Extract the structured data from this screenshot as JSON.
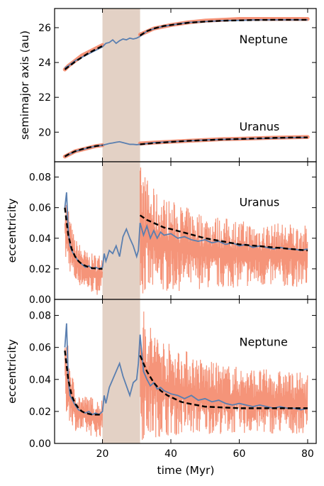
{
  "chart_data": {
    "type": "line",
    "layout": "3 vertically stacked panels sharing the x axis",
    "xlabel": "time (Myr)",
    "xlim": [
      6,
      82.5
    ],
    "xticks": [
      20,
      40,
      60,
      80
    ],
    "xtick_labels": [
      "20",
      "40",
      "60",
      "80"
    ],
    "shaded_band": {
      "x": [
        20,
        31
      ],
      "color": "#e2cfc2"
    },
    "colors": {
      "noisy": "#f4886a",
      "smooth": "#5a7fb0",
      "fit": "#000000"
    },
    "panels": [
      {
        "ylabel": "semimajor axis (au)",
        "ylim": [
          18.3,
          27.1
        ],
        "yticks": [
          20,
          22,
          24,
          26
        ],
        "ytick_labels": [
          "20",
          "22",
          "24",
          "26"
        ],
        "labels": [
          {
            "text": "Neptune",
            "x": 60,
            "y": 25.1
          },
          {
            "text": "Uranus",
            "x": 60,
            "y": 20.1
          }
        ],
        "series": [
          {
            "kind": "noisy",
            "x": [
              9,
              10,
              12,
              14,
              16,
              18,
              20
            ],
            "y": [
              23.6,
              23.8,
              24.1,
              24.4,
              24.6,
              24.8,
              25.0
            ]
          },
          {
            "kind": "noisy",
            "x": [
              31,
              35,
              40,
              45,
              50,
              55,
              60,
              65,
              70,
              75,
              80
            ],
            "y": [
              25.6,
              25.95,
              26.15,
              26.3,
              26.4,
              26.45,
              26.5,
              26.5,
              26.5,
              26.5,
              26.5
            ]
          },
          {
            "kind": "noisy",
            "x": [
              9,
              10,
              12,
              14,
              16,
              18,
              20
            ],
            "y": [
              18.6,
              18.7,
              18.9,
              19.0,
              19.1,
              19.2,
              19.25
            ]
          },
          {
            "kind": "noisy",
            "x": [
              31,
              35,
              40,
              45,
              50,
              55,
              60,
              65,
              70,
              75,
              80
            ],
            "y": [
              19.35,
              19.4,
              19.45,
              19.5,
              19.55,
              19.6,
              19.62,
              19.65,
              19.68,
              19.7,
              19.72
            ]
          },
          {
            "kind": "smooth",
            "x": [
              9,
              10,
              12,
              14,
              16,
              18,
              20,
              21,
              22,
              23,
              24,
              25,
              26,
              27,
              28,
              29,
              30,
              31,
              33,
              36,
              40,
              45,
              50,
              55,
              60,
              65,
              70,
              75,
              80
            ],
            "y": [
              23.7,
              23.8,
              24.1,
              24.3,
              24.5,
              24.7,
              24.9,
              25.1,
              25.15,
              25.3,
              25.1,
              25.25,
              25.35,
              25.3,
              25.4,
              25.35,
              25.4,
              25.5,
              25.8,
              26.0,
              26.15,
              26.3,
              26.35,
              26.4,
              26.42,
              26.45,
              26.45,
              26.45,
              26.45
            ]
          },
          {
            "kind": "smooth",
            "x": [
              9,
              10,
              12,
              14,
              16,
              18,
              20,
              21,
              22,
              23,
              24,
              25,
              26,
              27,
              28,
              29,
              30,
              31,
              35,
              40,
              45,
              50,
              55,
              60,
              65,
              70,
              75,
              80
            ],
            "y": [
              18.6,
              18.7,
              18.9,
              19.0,
              19.1,
              19.2,
              19.25,
              19.3,
              19.35,
              19.38,
              19.42,
              19.45,
              19.4,
              19.35,
              19.3,
              19.3,
              19.28,
              19.3,
              19.4,
              19.45,
              19.5,
              19.55,
              19.58,
              19.6,
              19.63,
              19.65,
              19.68,
              19.7
            ]
          },
          {
            "kind": "fit",
            "x": [
              9,
              10,
              12,
              14,
              16,
              18,
              20
            ],
            "y": [
              23.6,
              23.75,
              24.05,
              24.3,
              24.55,
              24.75,
              24.95
            ]
          },
          {
            "kind": "fit",
            "x": [
              31,
              33,
              35,
              38,
              40,
              45,
              50,
              55,
              60,
              65,
              70,
              75,
              80
            ],
            "y": [
              25.55,
              25.8,
              25.95,
              26.1,
              26.15,
              26.28,
              26.35,
              26.4,
              26.42,
              26.44,
              26.45,
              26.45,
              26.45
            ]
          },
          {
            "kind": "fit",
            "x": [
              9,
              10,
              12,
              14,
              16,
              18,
              20
            ],
            "y": [
              18.6,
              18.72,
              18.9,
              19.02,
              19.12,
              19.2,
              19.25
            ]
          },
          {
            "kind": "fit",
            "x": [
              31,
              35,
              40,
              45,
              50,
              55,
              60,
              65,
              70,
              75,
              80
            ],
            "y": [
              19.3,
              19.37,
              19.44,
              19.5,
              19.54,
              19.58,
              19.61,
              19.64,
              19.67,
              19.69,
              19.7
            ]
          }
        ]
      },
      {
        "ylabel": "eccentricity",
        "ylim": [
          0.0,
          0.09
        ],
        "yticks": [
          0.0,
          0.02,
          0.04,
          0.06,
          0.08
        ],
        "ytick_labels": [
          "0.00",
          "0.02",
          "0.04",
          "0.06",
          "0.08"
        ],
        "labels": [
          {
            "text": "Uranus",
            "x": 60,
            "y": 0.061
          }
        ],
        "noisy_envelope": [
          {
            "x": [
              9,
              10,
              11,
              12,
              14,
              16,
              18,
              20
            ],
            "low": [
              0.025,
              0.02,
              0.015,
              0.01,
              0.008,
              0.005,
              0.003,
              0.003
            ],
            "high": [
              0.07,
              0.062,
              0.048,
              0.04,
              0.035,
              0.03,
              0.03,
              0.03
            ]
          },
          {
            "x": [
              31,
              32,
              34,
              36,
              40,
              45,
              50,
              55,
              60,
              65,
              70,
              75,
              80
            ],
            "low": [
              0.002,
              0.002,
              0.003,
              0.004,
              0.005,
              0.006,
              0.007,
              0.007,
              0.008,
              0.008,
              0.008,
              0.008,
              0.008
            ],
            "high": [
              0.088,
              0.085,
              0.075,
              0.07,
              0.065,
              0.06,
              0.056,
              0.054,
              0.052,
              0.05,
              0.05,
              0.05,
              0.048
            ]
          }
        ],
        "series": [
          {
            "kind": "smooth",
            "x": [
              9,
              9.5,
              10,
              10.5,
              11,
              12,
              13,
              14,
              15,
              16,
              17,
              18,
              19,
              20,
              20.5,
              21,
              22,
              23,
              24,
              25,
              26,
              27,
              28,
              29,
              30,
              30.5,
              31,
              32,
              33,
              34,
              35,
              36,
              37,
              38,
              40,
              42,
              44,
              46,
              48,
              50,
              52,
              54,
              56,
              58,
              60,
              62,
              64,
              66,
              68,
              70,
              72,
              74,
              76,
              78,
              80
            ],
            "y": [
              0.06,
              0.07,
              0.045,
              0.035,
              0.032,
              0.028,
              0.025,
              0.023,
              0.021,
              0.022,
              0.02,
              0.021,
              0.02,
              0.021,
              0.03,
              0.025,
              0.032,
              0.03,
              0.035,
              0.028,
              0.041,
              0.046,
              0.04,
              0.035,
              0.028,
              0.032,
              0.05,
              0.042,
              0.048,
              0.04,
              0.045,
              0.04,
              0.044,
              0.042,
              0.043,
              0.04,
              0.041,
              0.039,
              0.038,
              0.039,
              0.037,
              0.038,
              0.036,
              0.037,
              0.035,
              0.036,
              0.034,
              0.035,
              0.034,
              0.033,
              0.034,
              0.033,
              0.033,
              0.032,
              0.033
            ]
          },
          {
            "kind": "fit",
            "x": [
              9,
              10,
              11,
              12,
              13,
              14,
              15,
              16,
              17,
              18,
              19,
              20
            ],
            "y": [
              0.06,
              0.042,
              0.033,
              0.028,
              0.025,
              0.023,
              0.022,
              0.021,
              0.0205,
              0.0202,
              0.02,
              0.02
            ]
          },
          {
            "kind": "fit",
            "x": [
              31,
              33,
              35,
              38,
              40,
              45,
              50,
              55,
              60,
              65,
              70,
              75,
              80
            ],
            "y": [
              0.055,
              0.052,
              0.05,
              0.047,
              0.046,
              0.043,
              0.04,
              0.038,
              0.036,
              0.035,
              0.034,
              0.033,
              0.032
            ]
          }
        ]
      },
      {
        "ylabel": "eccentricity",
        "ylim": [
          0.0,
          0.09
        ],
        "yticks": [
          0.0,
          0.02,
          0.04,
          0.06,
          0.08
        ],
        "ytick_labels": [
          "0.00",
          "0.02",
          "0.04",
          "0.06",
          "0.08"
        ],
        "labels": [
          {
            "text": "Neptune",
            "x": 60,
            "y": 0.061
          }
        ],
        "noisy_envelope": [
          {
            "x": [
              9,
              10,
              11,
              12,
              14,
              16,
              18,
              20
            ],
            "low": [
              0.02,
              0.015,
              0.012,
              0.008,
              0.006,
              0.005,
              0.004,
              0.004
            ],
            "high": [
              0.072,
              0.06,
              0.045,
              0.035,
              0.03,
              0.03,
              0.028,
              0.028
            ]
          },
          {
            "x": [
              31,
              32,
              34,
              36,
              40,
              45,
              50,
              55,
              60,
              65,
              70,
              75,
              80
            ],
            "low": [
              0.002,
              0.002,
              0.003,
              0.004,
              0.005,
              0.005,
              0.006,
              0.006,
              0.006,
              0.006,
              0.006,
              0.006,
              0.006
            ],
            "high": [
              0.088,
              0.085,
              0.075,
              0.07,
              0.062,
              0.058,
              0.052,
              0.05,
              0.048,
              0.047,
              0.046,
              0.045,
              0.044
            ]
          }
        ],
        "series": [
          {
            "kind": "smooth",
            "x": [
              9,
              9.5,
              10,
              10.5,
              11,
              12,
              13,
              14,
              15,
              16,
              17,
              18,
              19,
              20,
              20.5,
              21,
              22,
              23,
              24,
              25,
              26,
              27,
              28,
              29,
              30,
              30.5,
              31,
              32,
              33,
              34,
              35,
              36,
              37,
              38,
              40,
              42,
              44,
              46,
              48,
              50,
              52,
              54,
              56,
              58,
              60,
              62,
              64,
              66,
              68,
              70,
              72,
              74,
              76,
              78,
              80
            ],
            "y": [
              0.06,
              0.075,
              0.04,
              0.03,
              0.028,
              0.024,
              0.021,
              0.02,
              0.019,
              0.02,
              0.018,
              0.019,
              0.018,
              0.02,
              0.03,
              0.025,
              0.035,
              0.04,
              0.045,
              0.05,
              0.042,
              0.036,
              0.03,
              0.038,
              0.04,
              0.05,
              0.068,
              0.045,
              0.04,
              0.036,
              0.038,
              0.034,
              0.035,
              0.033,
              0.031,
              0.03,
              0.028,
              0.03,
              0.027,
              0.028,
              0.026,
              0.027,
              0.025,
              0.024,
              0.025,
              0.024,
              0.023,
              0.024,
              0.023,
              0.022,
              0.023,
              0.022,
              0.022,
              0.021,
              0.022
            ]
          },
          {
            "kind": "fit",
            "x": [
              9,
              10,
              11,
              12,
              13,
              14,
              15,
              16,
              17,
              18,
              19,
              20
            ],
            "y": [
              0.058,
              0.04,
              0.03,
              0.025,
              0.022,
              0.02,
              0.019,
              0.0185,
              0.018,
              0.018,
              0.018,
              0.018
            ]
          },
          {
            "kind": "fit",
            "x": [
              31,
              33,
              35,
              37,
              39,
              41,
              43,
              45,
              50,
              55,
              60,
              65,
              70,
              75,
              80
            ],
            "y": [
              0.055,
              0.045,
              0.038,
              0.033,
              0.03,
              0.028,
              0.026,
              0.025,
              0.023,
              0.0225,
              0.022,
              0.022,
              0.022,
              0.022,
              0.022
            ]
          }
        ]
      }
    ]
  }
}
